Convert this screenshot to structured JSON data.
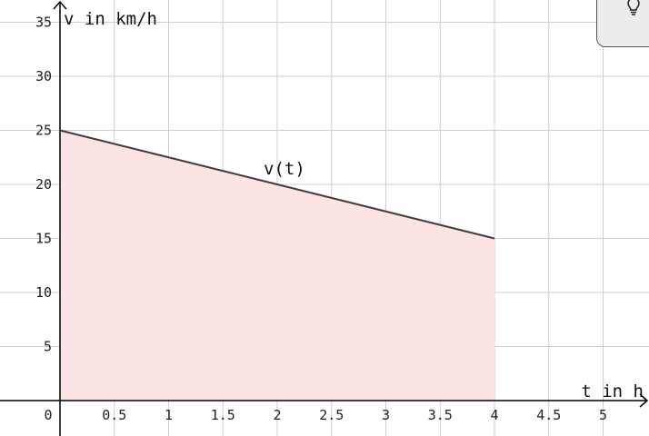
{
  "chart_data": {
    "type": "area",
    "title": "",
    "xlabel": "t in h",
    "ylabel": "v in km/h",
    "xlim": [
      0,
      5.4
    ],
    "ylim": [
      0,
      35
    ],
    "x_ticks": [
      0.5,
      1,
      1.5,
      2,
      2.5,
      3,
      3.5,
      4,
      4.5,
      5
    ],
    "x_tick_labels": [
      "0.5",
      "1",
      "1.5",
      "2",
      "2.5",
      "3",
      "3.5",
      "4",
      "4.5",
      "5"
    ],
    "y_ticks": [
      5,
      10,
      15,
      20,
      25,
      30,
      35
    ],
    "y_tick_labels": [
      "5",
      "10",
      "15",
      "20",
      "25",
      "30",
      "35"
    ],
    "origin_label": "0",
    "grid": true,
    "series": [
      {
        "name": "v(t)",
        "x": [
          0,
          4
        ],
        "y": [
          25,
          15
        ],
        "line_color": "#4a3b3b",
        "fill_color": "#fde4e4"
      }
    ],
    "annotations": [
      {
        "text": "v(t)",
        "x": 2,
        "y": 20
      }
    ]
  },
  "hint_button": {
    "icon": "lightbulb-icon"
  }
}
